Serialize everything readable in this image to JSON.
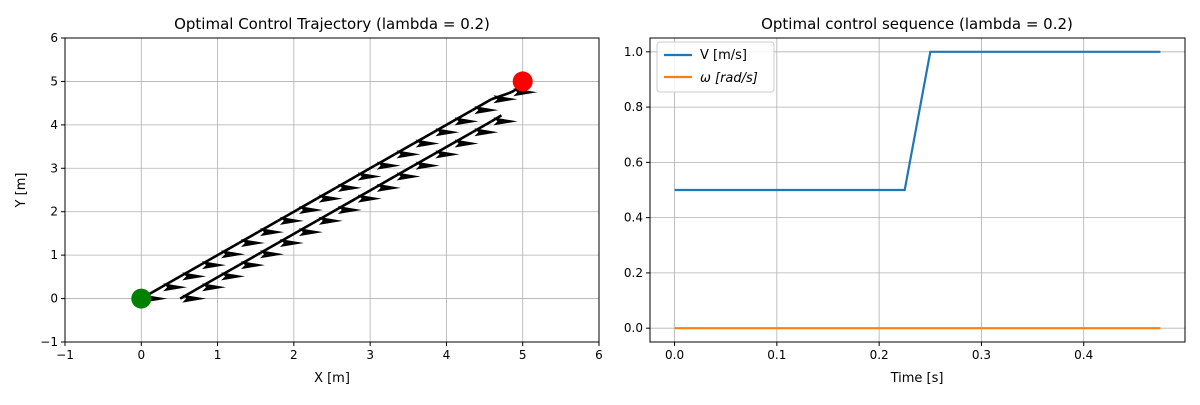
{
  "chart_data": [
    {
      "type": "scatter",
      "title": "Optimal Control Trajectory (lambda = 0.2)",
      "xlabel": "X [m]",
      "ylabel": "Y [m]",
      "xlim": [
        -1,
        6
      ],
      "ylim": [
        -1,
        6
      ],
      "xticks": [
        "−1",
        "0",
        "1",
        "2",
        "3",
        "4",
        "5",
        "6"
      ],
      "yticks": [
        "−1",
        "0",
        "1",
        "2",
        "3",
        "4",
        "5",
        "6"
      ],
      "grid": true,
      "start_point": {
        "x": 0,
        "y": 0,
        "color": "#008000"
      },
      "goal_point": {
        "x": 5,
        "y": 5,
        "color": "#ff0000"
      },
      "arrow_color": "#000000",
      "arrow_series_1": {
        "x": [
          0.0,
          0.26,
          0.51,
          0.77,
          1.02,
          1.28,
          1.53,
          1.79,
          2.04,
          2.3,
          2.55,
          2.81,
          3.06,
          3.32,
          3.57,
          3.83,
          4.08,
          4.34,
          4.59,
          4.85
        ],
        "y": [
          0.0,
          0.26,
          0.51,
          0.77,
          1.02,
          1.28,
          1.53,
          1.79,
          2.04,
          2.3,
          2.55,
          2.81,
          3.06,
          3.32,
          3.57,
          3.83,
          4.08,
          4.34,
          4.59,
          4.75
        ]
      },
      "arrow_series_2": {
        "x": [
          0.51,
          0.77,
          1.02,
          1.28,
          1.53,
          1.79,
          2.04,
          2.3,
          2.55,
          2.81,
          3.06,
          3.32,
          3.57,
          3.83,
          4.08,
          4.34,
          4.59
        ],
        "y": [
          0.0,
          0.26,
          0.51,
          0.77,
          1.02,
          1.28,
          1.53,
          1.79,
          2.04,
          2.3,
          2.55,
          2.81,
          3.06,
          3.32,
          3.57,
          3.83,
          4.08
        ]
      }
    },
    {
      "type": "line",
      "title": "Optimal control sequence (lambda = 0.2)",
      "xlabel": "Time [s]",
      "ylabel": "",
      "xlim": [
        -0.024,
        0.499
      ],
      "ylim": [
        -0.05,
        1.05
      ],
      "xticks": [
        0.0,
        0.1,
        0.2,
        0.3,
        0.4
      ],
      "yticks": [
        0.0,
        0.2,
        0.4,
        0.6,
        0.8,
        1.0
      ],
      "grid": true,
      "legend": "upper-left",
      "series": [
        {
          "name": "V [m/s]",
          "color": "#1f77b4",
          "x": [
            0.0,
            0.025,
            0.05,
            0.075,
            0.1,
            0.125,
            0.15,
            0.175,
            0.2,
            0.225,
            0.25,
            0.275,
            0.3,
            0.325,
            0.35,
            0.375,
            0.4,
            0.425,
            0.45,
            0.475
          ],
          "y": [
            0.5,
            0.5,
            0.5,
            0.5,
            0.5,
            0.5,
            0.5,
            0.5,
            0.5,
            0.5,
            1.0,
            1.0,
            1.0,
            1.0,
            1.0,
            1.0,
            1.0,
            1.0,
            1.0,
            1.0
          ]
        },
        {
          "name": "ω [rad/s]",
          "color": "#ff7f0e",
          "x": [
            0.0,
            0.475
          ],
          "y": [
            0.0,
            0.0
          ]
        }
      ]
    }
  ]
}
